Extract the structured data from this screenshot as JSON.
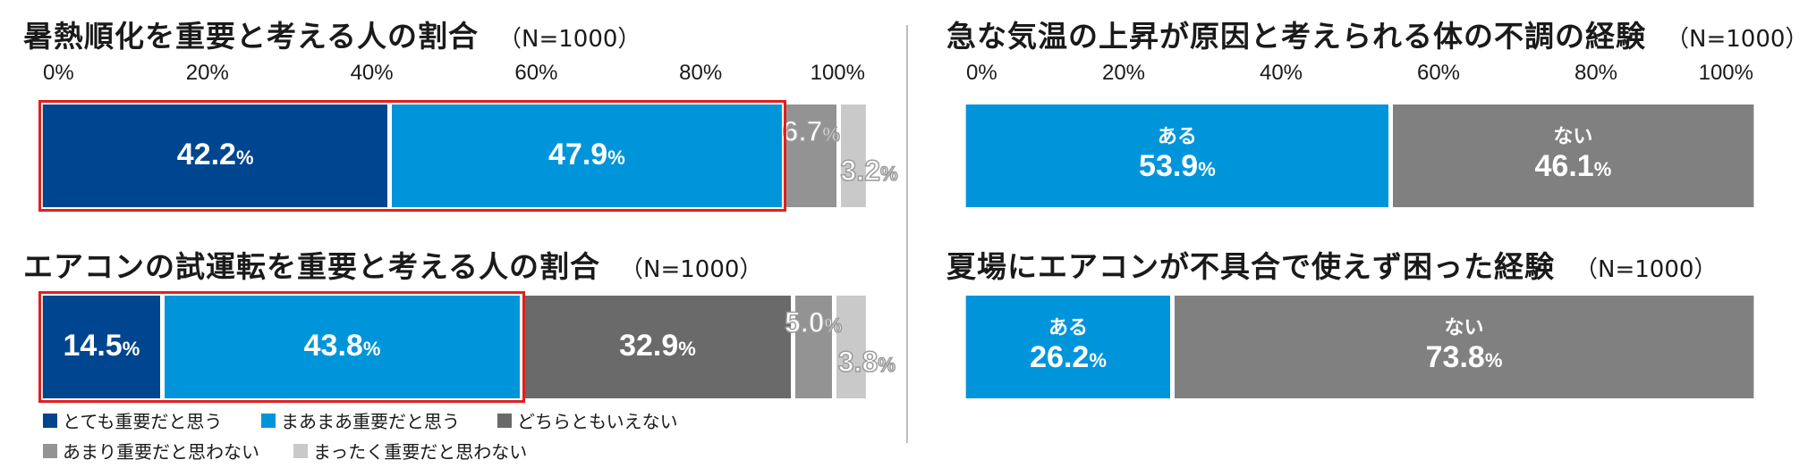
{
  "colors": {
    "very": "#00458f",
    "somewhat": "#0095db",
    "neutral": "#6a6a6a",
    "not_much": "#939393",
    "not_at_all": "#c9c9c9",
    "yes": "#0095db",
    "no": "#808080",
    "highlight": "#e02020"
  },
  "axis": {
    "ticks": [
      "0%",
      "20%",
      "40%",
      "60%",
      "80%",
      "100%"
    ]
  },
  "legend": [
    {
      "label": "とても重要だと思う",
      "color_key": "very"
    },
    {
      "label": "まあまあ重要だと思う",
      "color_key": "somewhat"
    },
    {
      "label": "どちらともいえない",
      "color_key": "neutral"
    },
    {
      "label": "あまり重要だと思わない",
      "color_key": "not_much"
    },
    {
      "label": "まったく重要だと思わない",
      "color_key": "not_at_all"
    }
  ],
  "chart_data": [
    {
      "type": "bar",
      "orientation": "horizontal-stacked",
      "title": "暑熱順化を重要と考える人の割合",
      "n_label": "（N=1000）",
      "xlim": [
        0,
        100
      ],
      "series": [
        {
          "name": "とても重要だと思う",
          "value": 42.2,
          "label": "42.2",
          "color_key": "very"
        },
        {
          "name": "まあまあ重要だと思う",
          "value": 47.9,
          "label": "47.9",
          "color_key": "somewhat"
        },
        {
          "name": "どちらともいえない",
          "value": 0,
          "label": "",
          "color_key": "neutral"
        },
        {
          "name": "あまり重要だと思わない",
          "value": 6.7,
          "label": "6.7",
          "color_key": "not_much"
        },
        {
          "name": "まったく重要だと思わない",
          "value": 3.2,
          "label": "3.2",
          "color_key": "not_at_all"
        }
      ],
      "highlighted_sum": 90.1
    },
    {
      "type": "bar",
      "orientation": "horizontal-stacked",
      "title": "エアコンの試運転を重要と考える人の割合",
      "n_label": "（N=1000）",
      "xlim": [
        0,
        100
      ],
      "series": [
        {
          "name": "とても重要だと思う",
          "value": 14.5,
          "label": "14.5",
          "color_key": "very"
        },
        {
          "name": "まあまあ重要だと思う",
          "value": 43.8,
          "label": "43.8",
          "color_key": "somewhat"
        },
        {
          "name": "どちらともいえない",
          "value": 32.9,
          "label": "32.9",
          "color_key": "neutral"
        },
        {
          "name": "あまり重要だと思わない",
          "value": 5.0,
          "label": "5.0",
          "color_key": "not_much"
        },
        {
          "name": "まったく重要だと思わない",
          "value": 3.8,
          "label": "3.8",
          "color_key": "not_at_all"
        }
      ],
      "highlighted_sum": 58.3
    },
    {
      "type": "bar",
      "orientation": "horizontal-stacked",
      "title": "急な気温の上昇が原因と考えられる体の不調の経験",
      "n_label": "（N=1000）",
      "xlim": [
        0,
        100
      ],
      "series": [
        {
          "name": "ある",
          "value": 53.9,
          "label": "53.9",
          "color_key": "yes"
        },
        {
          "name": "ない",
          "value": 46.1,
          "label": "46.1",
          "color_key": "no"
        }
      ]
    },
    {
      "type": "bar",
      "orientation": "horizontal-stacked",
      "title": "夏場にエアコンが不具合で使えず困った経験",
      "n_label": "（N=1000）",
      "xlim": [
        0,
        100
      ],
      "series": [
        {
          "name": "ある",
          "value": 26.2,
          "label": "26.2",
          "color_key": "yes"
        },
        {
          "name": "ない",
          "value": 73.8,
          "label": "73.8",
          "color_key": "no"
        }
      ]
    }
  ],
  "percent_sign": "%"
}
